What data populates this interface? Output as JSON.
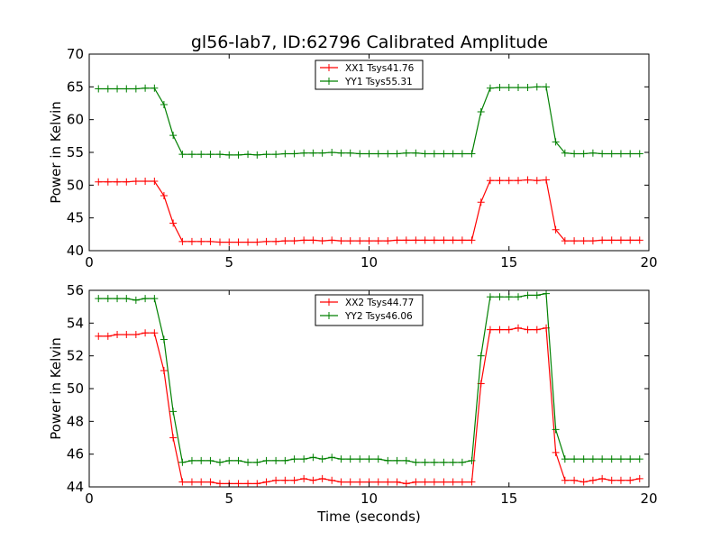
{
  "figure": {
    "title": "gl56-lab7, ID:62796 Calibrated Amplitude"
  },
  "chart_data": [
    {
      "type": "line",
      "xlabel": "",
      "ylabel": "Power in Kelvin",
      "xlim": [
        0,
        20
      ],
      "ylim": [
        40,
        70
      ],
      "xticks": [
        0,
        5,
        10,
        15,
        20
      ],
      "yticks": [
        40,
        45,
        50,
        55,
        60,
        65,
        70
      ],
      "grid": false,
      "legend_position": "top-center",
      "x": [
        0.33,
        0.67,
        1.0,
        1.33,
        1.67,
        2.0,
        2.33,
        2.67,
        3.0,
        3.33,
        3.67,
        4.0,
        4.33,
        4.67,
        5.0,
        5.33,
        5.67,
        6.0,
        6.33,
        6.67,
        7.0,
        7.33,
        7.67,
        8.0,
        8.33,
        8.67,
        9.0,
        9.33,
        9.67,
        10.0,
        10.33,
        10.67,
        11.0,
        11.33,
        11.67,
        12.0,
        12.33,
        12.67,
        13.0,
        13.33,
        13.67,
        14.0,
        14.33,
        14.67,
        15.0,
        15.33,
        15.67,
        16.0,
        16.33,
        16.67,
        17.0,
        17.33,
        17.67,
        18.0,
        18.33,
        18.67,
        19.0,
        19.33,
        19.67
      ],
      "series": [
        {
          "name": "XX1 Tsys41.76",
          "color": "#ff0000",
          "values": [
            50.5,
            50.5,
            50.5,
            50.5,
            50.6,
            50.6,
            50.6,
            48.4,
            44.2,
            41.4,
            41.4,
            41.4,
            41.4,
            41.3,
            41.3,
            41.3,
            41.3,
            41.3,
            41.4,
            41.4,
            41.5,
            41.5,
            41.6,
            41.6,
            41.5,
            41.6,
            41.5,
            41.5,
            41.5,
            41.5,
            41.5,
            41.5,
            41.6,
            41.6,
            41.6,
            41.6,
            41.6,
            41.6,
            41.6,
            41.6,
            41.6,
            47.4,
            50.7,
            50.7,
            50.7,
            50.7,
            50.8,
            50.7,
            50.8,
            43.2,
            41.5,
            41.5,
            41.5,
            41.5,
            41.6,
            41.6,
            41.6,
            41.6,
            41.6
          ]
        },
        {
          "name": "YY1 Tsys55.31",
          "color": "#008000",
          "values": [
            64.7,
            64.7,
            64.7,
            64.7,
            64.7,
            64.8,
            64.8,
            62.3,
            57.6,
            54.7,
            54.7,
            54.7,
            54.7,
            54.7,
            54.6,
            54.6,
            54.7,
            54.6,
            54.7,
            54.7,
            54.8,
            54.8,
            54.9,
            54.9,
            54.9,
            55.0,
            54.9,
            54.9,
            54.8,
            54.8,
            54.8,
            54.8,
            54.8,
            54.9,
            54.9,
            54.8,
            54.8,
            54.8,
            54.8,
            54.8,
            54.8,
            61.2,
            64.8,
            64.9,
            64.9,
            64.9,
            64.9,
            65.0,
            65.0,
            56.6,
            54.9,
            54.8,
            54.8,
            54.9,
            54.8,
            54.8,
            54.8,
            54.8,
            54.8
          ]
        }
      ]
    },
    {
      "type": "line",
      "xlabel": "Time (seconds)",
      "ylabel": "Power in Kelvin",
      "xlim": [
        0,
        20
      ],
      "ylim": [
        44,
        56
      ],
      "xticks": [
        0,
        5,
        10,
        15,
        20
      ],
      "yticks": [
        44,
        46,
        48,
        50,
        52,
        54,
        56
      ],
      "grid": false,
      "legend_position": "top-center",
      "x": [
        0.33,
        0.67,
        1.0,
        1.33,
        1.67,
        2.0,
        2.33,
        2.67,
        3.0,
        3.33,
        3.67,
        4.0,
        4.33,
        4.67,
        5.0,
        5.33,
        5.67,
        6.0,
        6.33,
        6.67,
        7.0,
        7.33,
        7.67,
        8.0,
        8.33,
        8.67,
        9.0,
        9.33,
        9.67,
        10.0,
        10.33,
        10.67,
        11.0,
        11.33,
        11.67,
        12.0,
        12.33,
        12.67,
        13.0,
        13.33,
        13.67,
        14.0,
        14.33,
        14.67,
        15.0,
        15.33,
        15.67,
        16.0,
        16.33,
        16.67,
        17.0,
        17.33,
        17.67,
        18.0,
        18.33,
        18.67,
        19.0,
        19.33,
        19.67
      ],
      "series": [
        {
          "name": "XX2 Tsys44.77",
          "color": "#ff0000",
          "values": [
            53.2,
            53.2,
            53.3,
            53.3,
            53.3,
            53.4,
            53.4,
            51.1,
            47.0,
            44.3,
            44.3,
            44.3,
            44.3,
            44.2,
            44.2,
            44.2,
            44.2,
            44.2,
            44.3,
            44.4,
            44.4,
            44.4,
            44.5,
            44.4,
            44.5,
            44.4,
            44.3,
            44.3,
            44.3,
            44.3,
            44.3,
            44.3,
            44.3,
            44.2,
            44.3,
            44.3,
            44.3,
            44.3,
            44.3,
            44.3,
            44.3,
            50.3,
            53.6,
            53.6,
            53.6,
            53.7,
            53.6,
            53.6,
            53.7,
            46.1,
            44.4,
            44.4,
            44.3,
            44.4,
            44.5,
            44.4,
            44.4,
            44.4,
            44.5
          ]
        },
        {
          "name": "YY2 Tsys46.06",
          "color": "#008000",
          "values": [
            55.5,
            55.5,
            55.5,
            55.5,
            55.4,
            55.5,
            55.5,
            53.0,
            48.6,
            45.5,
            45.6,
            45.6,
            45.6,
            45.5,
            45.6,
            45.6,
            45.5,
            45.5,
            45.6,
            45.6,
            45.6,
            45.7,
            45.7,
            45.8,
            45.7,
            45.8,
            45.7,
            45.7,
            45.7,
            45.7,
            45.7,
            45.6,
            45.6,
            45.6,
            45.5,
            45.5,
            45.5,
            45.5,
            45.5,
            45.5,
            45.6,
            52.0,
            55.6,
            55.6,
            55.6,
            55.6,
            55.7,
            55.7,
            55.8,
            47.5,
            45.7,
            45.7,
            45.7,
            45.7,
            45.7,
            45.7,
            45.7,
            45.7,
            45.7
          ]
        }
      ]
    }
  ]
}
